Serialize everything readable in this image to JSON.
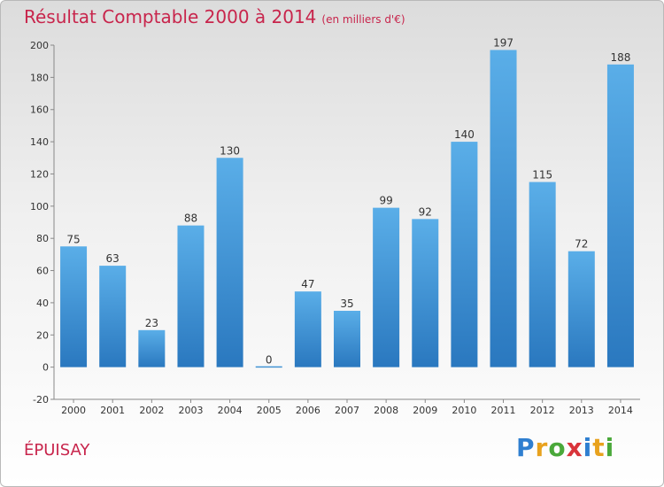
{
  "header": {
    "title": "Résultat Comptable 2000 à 2014",
    "subtitle": "(en milliers d'€)"
  },
  "footer": {
    "place": "ÉPUISAY",
    "logo_letters": [
      {
        "char": "P",
        "color": "#2f7fd0"
      },
      {
        "char": "r",
        "color": "#e8a21e"
      },
      {
        "char": "o",
        "color": "#4aa83a"
      },
      {
        "char": "x",
        "color": "#d9343a"
      },
      {
        "char": "i",
        "color": "#2f7fd0"
      },
      {
        "char": "t",
        "color": "#e8a21e"
      },
      {
        "char": "i",
        "color": "#4aa83a"
      }
    ]
  },
  "chart_data": {
    "type": "bar",
    "title": "Résultat Comptable 2000 à 2014",
    "subtitle": "(en milliers d'€)",
    "categories": [
      "2000",
      "2001",
      "2002",
      "2003",
      "2004",
      "2005",
      "2006",
      "2007",
      "2008",
      "2009",
      "2010",
      "2011",
      "2012",
      "2013",
      "2014"
    ],
    "values": [
      75,
      63,
      23,
      88,
      130,
      0,
      47,
      35,
      99,
      92,
      140,
      197,
      115,
      72,
      188
    ],
    "ylim": [
      -20,
      200
    ],
    "yticks": [
      -20,
      0,
      20,
      40,
      60,
      80,
      100,
      120,
      140,
      160,
      180,
      200
    ],
    "grid": false,
    "legend": "none",
    "bar_color_top": "#5aaee8",
    "bar_color_bottom": "#2a78bf"
  }
}
